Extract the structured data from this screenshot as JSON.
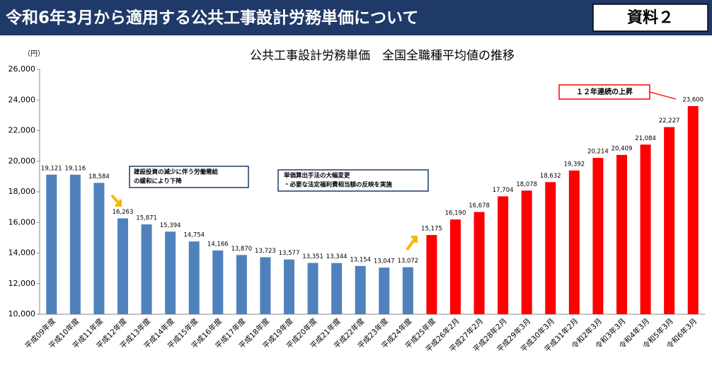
{
  "header": {
    "title": "令和6年3月から適用する公共工事設計労務単価について",
    "badge": "資料２"
  },
  "chart_data": {
    "type": "bar",
    "title": "公共工事設計労務単価　全国全職種平均値の推移",
    "y_unit": "（円）",
    "categories": [
      "平成09年度",
      "平成10年度",
      "平成11年度",
      "平成12年度",
      "平成13年度",
      "平成14年度",
      "平成15年度",
      "平成16年度",
      "平成17年度",
      "平成18年度",
      "平成19年度",
      "平成20年度",
      "平成21年度",
      "平成22年度",
      "平成23年度",
      "平成24年度",
      "平成25年度",
      "平成26年2月",
      "平成27年2月",
      "平成28年2月",
      "平成29年3月",
      "平成30年3月",
      "平成31年2月",
      "令和2年3月",
      "令和3年3月",
      "令和4年3月",
      "令和5年3月",
      "令和6年3月"
    ],
    "values": [
      19121,
      19116,
      18584,
      16263,
      15871,
      15394,
      14754,
      14166,
      13870,
      13723,
      13577,
      13351,
      13344,
      13154,
      13047,
      13072,
      15175,
      16190,
      16678,
      17704,
      18078,
      18632,
      19392,
      20214,
      20409,
      21084,
      22227,
      23600
    ],
    "value_labels": [
      "19,121",
      "19,116",
      "18,584",
      "16,263",
      "15,871",
      "15,394",
      "14,754",
      "14,166",
      "13,870",
      "13,723",
      "13,577",
      "13,351",
      "13,344",
      "13,154",
      "13,047",
      "13,072",
      "15,175",
      "16,190",
      "16,678",
      "17,704",
      "18,078",
      "18,632",
      "19,392",
      "20,214",
      "20,409",
      "21,084",
      "22,227",
      "23,600"
    ],
    "colors": [
      "#4f81bd",
      "#4f81bd",
      "#4f81bd",
      "#4f81bd",
      "#4f81bd",
      "#4f81bd",
      "#4f81bd",
      "#4f81bd",
      "#4f81bd",
      "#4f81bd",
      "#4f81bd",
      "#4f81bd",
      "#4f81bd",
      "#4f81bd",
      "#4f81bd",
      "#4f81bd",
      "#ff0000",
      "#ff0000",
      "#ff0000",
      "#ff0000",
      "#ff0000",
      "#ff0000",
      "#ff0000",
      "#ff0000",
      "#ff0000",
      "#ff0000",
      "#ff0000",
      "#ff0000"
    ],
    "ylim": [
      10000,
      26000
    ],
    "yticks": [
      {
        "value": 10000,
        "label": "10,000"
      },
      {
        "value": 12000,
        "label": "12,000"
      },
      {
        "value": 14000,
        "label": "14,000"
      },
      {
        "value": 16000,
        "label": "16,000"
      },
      {
        "value": 18000,
        "label": "18,000"
      },
      {
        "value": 20000,
        "label": "20,000"
      },
      {
        "value": 22000,
        "label": "22,000"
      },
      {
        "value": 24000,
        "label": "24,000"
      },
      {
        "value": 26000,
        "label": "26,000"
      }
    ],
    "grid": false,
    "annotations": [
      {
        "lines": [
          "建設投資の減少に伴う労働需給",
          "の緩和により下降"
        ]
      },
      {
        "lines": [
          "単価算出手法の大幅変更",
          "・必要な法定福利費相当額の反映を実施"
        ]
      },
      {
        "lines": [
          "１２年連続の上昇"
        ]
      }
    ]
  }
}
